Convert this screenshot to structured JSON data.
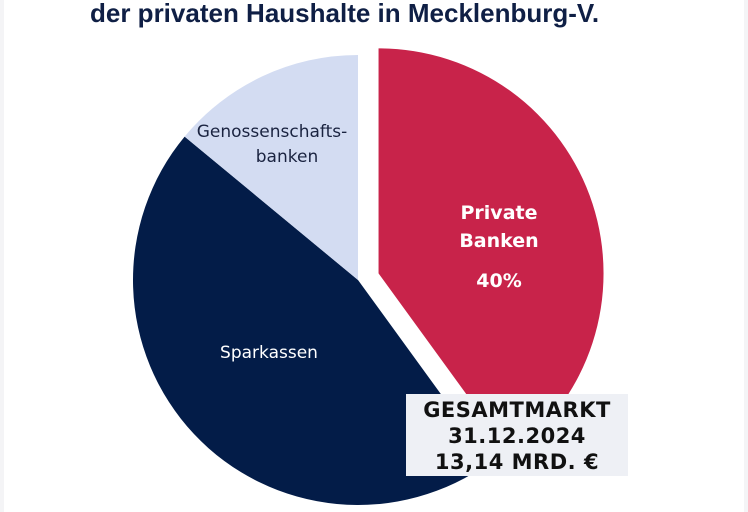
{
  "title": "der privaten Haushalte in Mecklenburg-V.",
  "chart_data": {
    "type": "pie",
    "title": "der privaten Haushalte in Mecklenburg-V.",
    "slices": [
      {
        "label": "Private Banken",
        "label_lines": [
          "Private",
          "Banken"
        ],
        "value": 40,
        "value_label": "40%",
        "color": "#c8234a",
        "exploded": true
      },
      {
        "label": "Sparkassen",
        "label_lines": [
          "Sparkassen"
        ],
        "value": 46,
        "color": "#031c48"
      },
      {
        "label": "Genossenschaftsbanken",
        "label_lines": [
          "Genossenschafts-",
          "banken"
        ],
        "value": 14,
        "color": "#d3dcf2"
      }
    ],
    "start_angle": "12 o'clock, clockwise"
  },
  "summary_box": {
    "line1": "GESAMTMARKT",
    "line2": "31.12.2024",
    "line3": "13,14 MRD. €"
  }
}
